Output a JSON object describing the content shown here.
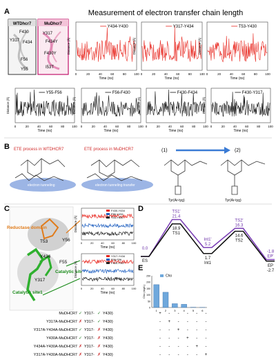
{
  "panel_labels": {
    "a": "A",
    "b": "B",
    "c": "C",
    "d": "D",
    "e": "E"
  },
  "title": "Measurement of electron transfer chain length",
  "wt_box": {
    "title": "WTDhcr7",
    "residues": [
      "F430",
      "Y317",
      "F434",
      "F56",
      "Y55"
    ]
  },
  "mu_box": {
    "title": "MuDhcr7",
    "residues": [
      "Y317",
      "F434Y",
      "F430Y",
      "I53T"
    ]
  },
  "row1_charts": [
    {
      "legend": "Y434-Y430",
      "color": "#e8271f"
    },
    {
      "legend": "Y317-Y434",
      "color": "#e8271f"
    },
    {
      "legend": "T53-Y430",
      "color": "#e8271f"
    }
  ],
  "row2_charts": [
    {
      "legend": "Y55-F56",
      "color": "#111111"
    },
    {
      "legend": "F56-F430",
      "color": "#111111"
    },
    {
      "legend": "F430-F434",
      "color": "#111111"
    },
    {
      "legend": "F430-Y317",
      "color": "#111111"
    }
  ],
  "axis": {
    "xlabel": "Time (ns)",
    "ylabel": "Distance (Å)",
    "xticks": [
      "0",
      "20",
      "40",
      "60",
      "80",
      "100"
    ]
  },
  "panel_b": {
    "title_wt": "ETE process in WTDHCR7",
    "title_mu": "ETE process in MuDHCR7",
    "tunnel_wt": "electron tunneling",
    "tunnel_mu": "electron tunneling  transfer",
    "step1": "(1)",
    "step2": "(2)",
    "tyr1": "Tyr(Ar-tyg)",
    "tyr2": "Tyr(Ar-tyg)"
  },
  "panel_c": {
    "reductase": "Reductase domain",
    "labels": [
      "T53",
      "Y56",
      "Y434",
      "F55",
      "Y317"
    ],
    "site2": "Catalytic site2",
    "site1": "Catalytic site1",
    "chart_top_legend": [
      "F430-Y434",
      "F56-Y434",
      "T53-Y430"
    ],
    "chart_bot_legend": [
      "Y317-Y434",
      "F55-F56",
      "F430-Y317"
    ]
  },
  "chart_data": {
    "type": "line",
    "title": "",
    "ylabel": "Energy",
    "states": [
      "ES",
      "TS1",
      "Int1",
      "TS2",
      "EP"
    ],
    "series": [
      {
        "values": [
          0.0,
          21.4,
          5.2,
          16.3,
          -1.8
        ],
        "color": "#7b3fb5"
      },
      {
        "values": [
          0.0,
          18.9,
          1.7,
          14.6,
          -2.7
        ],
        "color": "#111111"
      }
    ],
    "point_labels": {
      "purple": [
        "0.0",
        "TS1'\n21.4",
        "Int1'\n5.2",
        "TS2'\n16.3",
        "-1.8\nEP'"
      ],
      "black": [
        "ES",
        "18.9\nTS1",
        "1.7\nInt1",
        "14.6\nTS2",
        "EP\n-2.7"
      ]
    },
    "bars": {
      "legend": "Cho",
      "ylabel": "Cho (mg/L)",
      "categories": [
        "1",
        "2",
        "3",
        "4",
        "5",
        "6"
      ],
      "values": [
        180,
        120,
        30,
        25,
        2,
        1
      ],
      "ylim": [
        0,
        250
      ],
      "yticks": [
        "0",
        "50",
        "100",
        "150",
        "200",
        "250"
      ]
    }
  },
  "table": {
    "rows": [
      {
        "label": "MuDHCR7",
        "mark": "✓",
        "y317": "Y317-",
        "mark2": "✓",
        "y430": "Y430)",
        "cells": [
          "+",
          "-",
          "-",
          "-",
          "-",
          "-"
        ]
      },
      {
        "label": "Y317A-MuDHCR7",
        "mark": "✗",
        "y317": "Y317-",
        "mark2": "✓",
        "y430": "Y430)",
        "cells": [
          "-",
          "+",
          "-",
          "-",
          "-",
          "-"
        ]
      },
      {
        "label": "Y317A-Y434A-MuDHCR7",
        "mark": "✓",
        "y317": "Y317-",
        "mark2": "✗",
        "y430": "Y430)",
        "cells": [
          "-",
          "-",
          "+",
          "-",
          "-",
          "-"
        ]
      },
      {
        "label": "Y430A-MuDHCR7",
        "mark": "✓",
        "y317": "Y317-",
        "mark2": "✗",
        "y430": "Y430)",
        "cells": [
          "-",
          "-",
          "-",
          "+",
          "-",
          "-"
        ]
      },
      {
        "label": "Y434A-Y430A-MuDHCR7",
        "mark": "✗",
        "y317": "Y317-",
        "mark2": "✗",
        "y430": "Y430)",
        "cells": [
          "-",
          "-",
          "-",
          "-",
          "+",
          "-"
        ]
      },
      {
        "label": "Y317A-Y430A-MuDHCR7",
        "mark": "✗",
        "y317": "Y317-",
        "mark2": "✗",
        "y430": "Y430)",
        "cells": [
          "-",
          "-",
          "-",
          "-",
          "-",
          "+"
        ]
      }
    ]
  }
}
